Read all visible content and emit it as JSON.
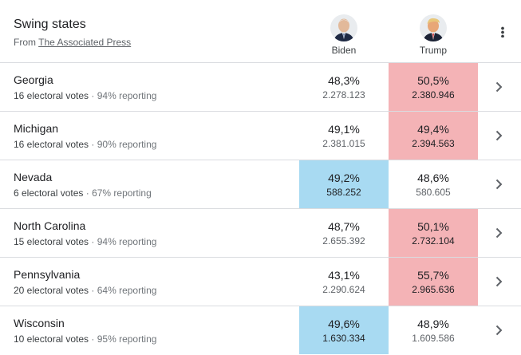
{
  "header": {
    "title": "Swing states",
    "source_prefix": "From ",
    "source_link": "The Associated Press"
  },
  "candidates": [
    {
      "name": "Biden",
      "avatar": "biden-avatar"
    },
    {
      "name": "Trump",
      "avatar": "trump-avatar"
    }
  ],
  "colors": {
    "biden_win": "#a8daf2",
    "trump_win": "#f4b3b6"
  },
  "rows": [
    {
      "state": "Georgia",
      "electoral": "16 electoral votes",
      "reporting": "94% reporting",
      "biden_pct": "48,3%",
      "biden_votes": "2.278.123",
      "trump_pct": "50,5%",
      "trump_votes": "2.380.946",
      "leader": "trump"
    },
    {
      "state": "Michigan",
      "electoral": "16 electoral votes",
      "reporting": "90% reporting",
      "biden_pct": "49,1%",
      "biden_votes": "2.381.015",
      "trump_pct": "49,4%",
      "trump_votes": "2.394.563",
      "leader": "trump"
    },
    {
      "state": "Nevada",
      "electoral": "6 electoral votes",
      "reporting": "67% reporting",
      "biden_pct": "49,2%",
      "biden_votes": "588.252",
      "trump_pct": "48,6%",
      "trump_votes": "580.605",
      "leader": "biden"
    },
    {
      "state": "North Carolina",
      "electoral": "15 electoral votes",
      "reporting": "94% reporting",
      "biden_pct": "48,7%",
      "biden_votes": "2.655.392",
      "trump_pct": "50,1%",
      "trump_votes": "2.732.104",
      "leader": "trump"
    },
    {
      "state": "Pennsylvania",
      "electoral": "20 electoral votes",
      "reporting": "64% reporting",
      "biden_pct": "43,1%",
      "biden_votes": "2.290.624",
      "trump_pct": "55,7%",
      "trump_votes": "2.965.636",
      "leader": "trump"
    },
    {
      "state": "Wisconsin",
      "electoral": "10 electoral votes",
      "reporting": "95% reporting",
      "biden_pct": "49,6%",
      "biden_votes": "1.630.334",
      "trump_pct": "48,9%",
      "trump_votes": "1.609.586",
      "leader": "biden"
    }
  ],
  "separator": " · "
}
